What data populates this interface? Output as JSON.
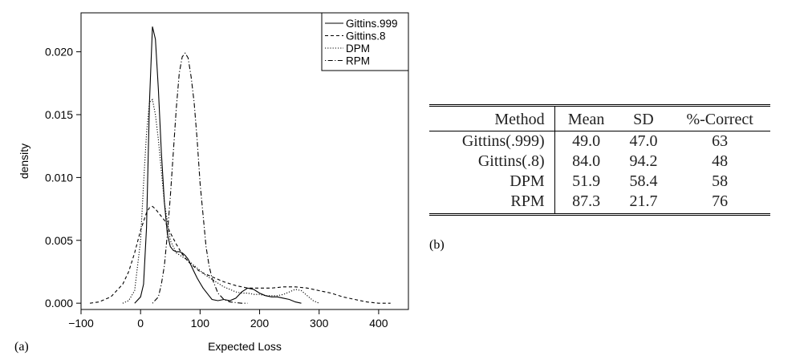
{
  "panel_a_label": "(a)",
  "panel_b_label": "(b)",
  "chart_data": {
    "type": "line",
    "title": "",
    "xlabel": "Expected Loss",
    "ylabel": "density",
    "xlim": [
      -100,
      450
    ],
    "ylim": [
      -0.0005,
      0.0231
    ],
    "xticks": [
      -100,
      0,
      100,
      200,
      300,
      400
    ],
    "xtick_labels": [
      "−100",
      "0",
      "100",
      "200",
      "300",
      "400"
    ],
    "yticks": [
      0.0,
      0.005,
      0.01,
      0.015,
      0.02
    ],
    "ytick_labels": [
      "0.000",
      "0.005",
      "0.010",
      "0.015",
      "0.020"
    ],
    "grid": false,
    "legend_position": "top-right",
    "series": [
      {
        "name": "Gittins.999",
        "dash": "solid",
        "x": [
          -10,
          0,
          5,
          10,
          15,
          20,
          25,
          30,
          35,
          40,
          45,
          50,
          55,
          60,
          65,
          70,
          75,
          80,
          85,
          90,
          95,
          100,
          105,
          110,
          115,
          120,
          130,
          140,
          150,
          160,
          170,
          180,
          190,
          200,
          210,
          220,
          230,
          240,
          250,
          260,
          270
        ],
        "y": [
          0.0,
          0.0005,
          0.0015,
          0.006,
          0.016,
          0.022,
          0.021,
          0.017,
          0.012,
          0.008,
          0.0055,
          0.0045,
          0.0042,
          0.0041,
          0.0041,
          0.004,
          0.0038,
          0.0035,
          0.003,
          0.0025,
          0.002,
          0.0016,
          0.0012,
          0.0009,
          0.0006,
          0.0003,
          0.0002,
          0.0003,
          0.0002,
          0.0004,
          0.0009,
          0.0012,
          0.0011,
          0.0008,
          0.0006,
          0.0005,
          0.0005,
          0.0004,
          0.0003,
          0.0001,
          0.0
        ]
      },
      {
        "name": "Gittins.8",
        "dash": "dashed",
        "x": [
          -85,
          -70,
          -50,
          -30,
          -20,
          -10,
          0,
          10,
          15,
          20,
          25,
          30,
          40,
          50,
          60,
          70,
          80,
          90,
          100,
          120,
          140,
          160,
          180,
          200,
          220,
          240,
          260,
          280,
          300,
          320,
          340,
          360,
          380,
          400,
          420
        ],
        "y": [
          0.0,
          0.0001,
          0.0005,
          0.0015,
          0.0025,
          0.004,
          0.0058,
          0.0072,
          0.0076,
          0.0077,
          0.0075,
          0.0072,
          0.0066,
          0.0056,
          0.0047,
          0.0039,
          0.0033,
          0.0029,
          0.0025,
          0.0021,
          0.0017,
          0.0014,
          0.0012,
          0.0012,
          0.0012,
          0.0013,
          0.0013,
          0.0012,
          0.001,
          0.0008,
          0.0005,
          0.0003,
          0.0001,
          0.0,
          0.0
        ]
      },
      {
        "name": "DPM",
        "dash": "dotted",
        "x": [
          -30,
          -20,
          -10,
          0,
          5,
          10,
          15,
          20,
          25,
          30,
          35,
          40,
          50,
          60,
          70,
          80,
          90,
          100,
          110,
          120,
          130,
          140,
          150,
          160,
          170,
          180,
          190,
          200,
          210,
          220,
          230,
          240,
          250,
          260,
          270,
          280,
          290,
          300
        ],
        "y": [
          0.0,
          0.0002,
          0.001,
          0.005,
          0.0095,
          0.0135,
          0.016,
          0.0162,
          0.015,
          0.013,
          0.0105,
          0.008,
          0.005,
          0.004,
          0.0037,
          0.0034,
          0.003,
          0.0026,
          0.0022,
          0.0019,
          0.0016,
          0.0013,
          0.0011,
          0.0009,
          0.0008,
          0.0008,
          0.0007,
          0.0007,
          0.0006,
          0.0006,
          0.0006,
          0.0007,
          0.0009,
          0.0011,
          0.001,
          0.0006,
          0.0002,
          0.0
        ]
      },
      {
        "name": "RPM",
        "dash": "dotdash",
        "x": [
          20,
          30,
          35,
          40,
          45,
          50,
          55,
          60,
          65,
          70,
          75,
          80,
          85,
          90,
          95,
          100,
          105,
          110,
          115,
          120,
          130,
          140,
          150,
          160,
          170,
          180
        ],
        "y": [
          0.0,
          0.0005,
          0.0015,
          0.003,
          0.0055,
          0.0085,
          0.012,
          0.0155,
          0.0183,
          0.0196,
          0.0199,
          0.0195,
          0.018,
          0.016,
          0.013,
          0.0095,
          0.007,
          0.0045,
          0.003,
          0.002,
          0.0008,
          0.0003,
          0.0001,
          5e-05,
          0.0,
          0.0
        ]
      }
    ]
  },
  "table": {
    "headers": [
      "Method",
      "Mean",
      "SD",
      "%-Correct"
    ],
    "rows": [
      [
        "Gittins(.999)",
        "49.0",
        "47.0",
        "63"
      ],
      [
        "Gittins(.8)",
        "84.0",
        "94.2",
        "48"
      ],
      [
        "DPM",
        "51.9",
        "58.4",
        "58"
      ],
      [
        "RPM",
        "87.3",
        "21.7",
        "76"
      ]
    ]
  }
}
